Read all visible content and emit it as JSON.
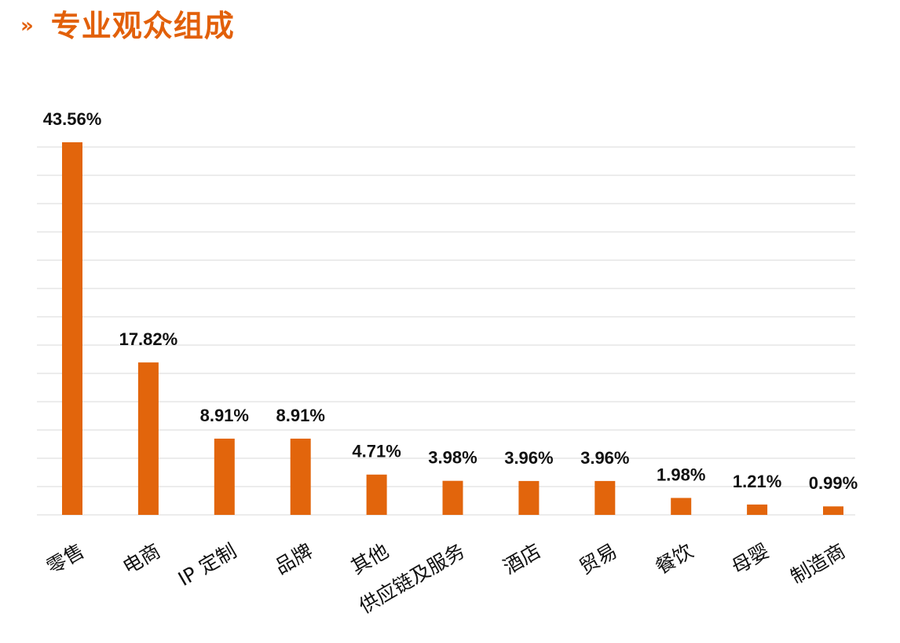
{
  "header": {
    "chevron": "»",
    "title": "专业观众组成"
  },
  "colors": {
    "accent": "#e2600a",
    "bar": "#e2650c"
  },
  "chart_data": {
    "type": "bar",
    "categories": [
      "零售",
      "电商",
      "IP 定制",
      "品牌",
      "其他",
      "供应链及服务",
      "酒店",
      "贸易",
      "餐饮",
      "母婴",
      "制造商"
    ],
    "values": [
      43.56,
      17.82,
      8.91,
      8.91,
      4.71,
      3.98,
      3.96,
      3.96,
      1.98,
      1.21,
      0.99
    ],
    "value_labels": [
      "43.56%",
      "17.82%",
      "8.91%",
      "8.91%",
      "4.71%",
      "3.98%",
      "3.96%",
      "3.96%",
      "1.98%",
      "1.21%",
      "0.99%"
    ],
    "ylim": [
      0,
      45
    ],
    "grid": true,
    "title": "",
    "xlabel": "",
    "ylabel": ""
  }
}
